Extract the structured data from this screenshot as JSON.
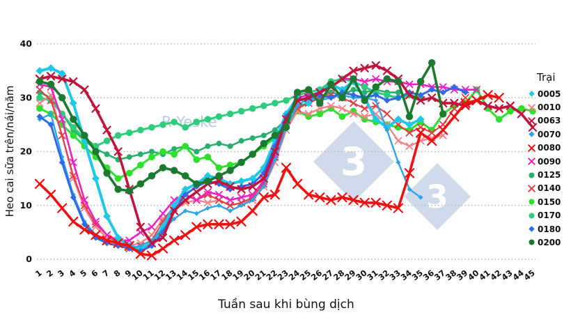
{
  "watermark": {
    "text": "R Yeske",
    "logo_digit": "3"
  },
  "chart_data": {
    "type": "line",
    "title": "",
    "xlabel": "Tuần sau khi bùng dịch",
    "ylabel": "Heo cai sữa trên/nái/năm",
    "legend_title": "Trại",
    "legend_position": "right",
    "grid": "horizontal-dotted",
    "grid_color": "#b8b8b8",
    "ylim": [
      0,
      40
    ],
    "yticks": [
      0,
      10,
      20,
      30,
      40
    ],
    "x_ticks": [
      1,
      2,
      3,
      4,
      5,
      6,
      7,
      8,
      9,
      10,
      11,
      12,
      13,
      14,
      15,
      16,
      17,
      18,
      19,
      20,
      21,
      22,
      23,
      24,
      25,
      26,
      27,
      28,
      29,
      30,
      31,
      32,
      33,
      34,
      35,
      36,
      37,
      38,
      39,
      40,
      41,
      42,
      43,
      44,
      45
    ],
    "draw_order": [
      "0125",
      "0170",
      "0150",
      "0010",
      "0140",
      "0090",
      "0005",
      "0070",
      "0180",
      "0063",
      "0200",
      "0080"
    ],
    "series": [
      {
        "name": "0005",
        "color": "#1ec8e6",
        "marker": "diamond",
        "width": 4,
        "msize": 5.5,
        "values": [
          35,
          35.5,
          34.5,
          29,
          22,
          15,
          8,
          4,
          2.5,
          2,
          3,
          6,
          10,
          13,
          14,
          15.5,
          15,
          14,
          14.5,
          15,
          17,
          22,
          27,
          30,
          29,
          31,
          32.5,
          31.5,
          33,
          30,
          26,
          24.5,
          26,
          25,
          26,
          null,
          null,
          null,
          null,
          null,
          null,
          null,
          null,
          null,
          null
        ]
      },
      {
        "name": "0010",
        "color": "#f08488",
        "marker": "x",
        "width": 2.4,
        "msize": 4.5,
        "values": [
          29,
          30.5,
          23,
          15,
          9.5,
          6,
          4,
          3,
          2.5,
          3,
          4.5,
          7.5,
          9.5,
          10.5,
          11,
          10.5,
          11,
          10,
          10.5,
          11,
          13.5,
          18,
          24,
          27.5,
          27,
          28,
          28.5,
          28,
          27,
          26.5,
          27,
          25,
          22,
          21,
          22,
          22.5,
          23,
          null,
          null,
          null,
          null,
          null,
          null,
          null,
          null
        ]
      },
      {
        "name": "0063",
        "color": "#c0143c",
        "marker": "x",
        "width": 3.6,
        "msize": 5,
        "values": [
          33.5,
          34,
          33.5,
          33,
          31.5,
          28,
          24,
          20,
          13,
          6,
          3,
          4,
          9,
          11,
          12.5,
          14,
          14.5,
          13.5,
          13,
          13.5,
          15,
          20,
          26,
          29.5,
          30,
          31,
          32,
          33.5,
          35,
          35.5,
          36,
          35,
          33.5,
          30.5,
          29.5,
          30,
          29,
          29,
          28.5,
          29.5,
          28.5,
          28,
          28.5,
          27,
          24.5
        ]
      },
      {
        "name": "0070",
        "color": "#2fa3e8",
        "marker": "diamond",
        "width": 2.4,
        "msize": 3.5,
        "values": [
          26,
          27,
          19,
          12,
          7,
          4.5,
          3,
          2.5,
          2,
          2.5,
          3.5,
          5.5,
          7.5,
          9,
          8.5,
          9.5,
          10,
          9,
          10,
          11,
          13.5,
          18.5,
          24.5,
          28.5,
          30,
          29.5,
          30,
          30.5,
          30,
          30,
          29.5,
          24,
          18,
          13,
          11.5,
          null,
          null,
          null,
          null,
          null,
          null,
          null,
          null,
          null,
          null
        ]
      },
      {
        "name": "0080",
        "color": "#ee1111",
        "marker": "x",
        "width": 3.6,
        "msize": 6,
        "values": [
          14,
          12,
          9.5,
          7,
          5.5,
          4.5,
          3.5,
          3,
          2.5,
          1,
          0.7,
          2,
          3.5,
          4.5,
          6,
          6.5,
          6.5,
          6.5,
          7,
          9,
          11.5,
          12,
          17,
          14,
          12,
          11.5,
          11,
          11.5,
          11,
          10.5,
          10.5,
          10,
          9.5,
          16,
          23.5,
          22,
          24,
          26.5,
          29,
          29.5,
          30.5,
          30,
          null,
          null,
          null
        ]
      },
      {
        "name": "0090",
        "color": "#e922c4",
        "marker": "x",
        "width": 2.6,
        "msize": 4.5,
        "values": [
          32.5,
          32,
          26,
          18,
          11,
          7,
          4.5,
          3.5,
          3.5,
          5,
          6,
          8.5,
          11,
          12,
          11,
          12.5,
          12,
          11,
          11.5,
          12,
          14.5,
          19.5,
          26,
          30,
          30.5,
          31,
          32,
          33.5,
          33.5,
          33,
          33.5,
          33,
          33,
          32.5,
          32.5,
          32,
          32,
          31.5,
          31.5,
          31.5,
          null,
          null,
          null,
          null,
          null
        ]
      },
      {
        "name": "0125",
        "color": "#2aae6e",
        "marker": "circle",
        "width": 2.6,
        "msize": 4,
        "values": [
          31,
          30,
          27,
          24,
          22,
          20.5,
          19.5,
          18.5,
          19,
          19.5,
          20,
          19.5,
          20.5,
          21,
          20,
          21,
          21.5,
          21,
          22,
          22.5,
          23,
          24,
          26,
          28.5,
          29,
          30,
          31,
          30.5,
          31.5,
          31,
          31.5,
          31,
          31,
          null,
          null,
          null,
          null,
          null,
          null,
          null,
          null,
          null,
          null,
          null,
          null
        ]
      },
      {
        "name": "0140",
        "color": "#e03c44",
        "marker": "x",
        "width": 2,
        "msize": 4.5,
        "values": [
          31.5,
          29.5,
          23,
          15.5,
          10,
          6.5,
          4.5,
          3,
          2,
          2.5,
          3.5,
          7,
          10,
          12,
          11,
          12,
          11,
          10,
          10.5,
          11.5,
          14,
          19,
          25,
          28,
          29,
          30,
          30.5,
          30,
          29,
          28,
          28.5,
          27,
          25,
          23.5,
          24.5,
          23.5,
          25,
          28,
          30,
          null,
          null,
          null,
          null,
          null,
          null
        ]
      },
      {
        "name": "0150",
        "color": "#2ee02e",
        "marker": "circle",
        "width": 3,
        "msize": 4.8,
        "values": [
          28,
          27,
          25,
          23,
          21,
          19,
          17,
          15,
          16,
          17.5,
          19,
          20,
          19.5,
          21,
          18.5,
          19,
          17,
          17.5,
          18,
          19.5,
          21,
          22.5,
          25,
          27.5,
          26.5,
          27,
          28,
          26.5,
          27.5,
          26,
          25.5,
          25,
          24.5,
          24,
          25.5,
          24,
          27,
          28.5,
          29,
          31.5,
          28,
          26,
          27.5,
          28,
          27.5
        ]
      },
      {
        "name": "0170",
        "color": "#2fcc7e",
        "marker": "circle",
        "width": 3,
        "msize": 4.8,
        "values": [
          30,
          29.5,
          27,
          24.5,
          22.5,
          21,
          22,
          23,
          23.5,
          24,
          24.5,
          25,
          25.5,
          24.5,
          25.5,
          26,
          26.5,
          27,
          27.5,
          28,
          28.5,
          29,
          29.5,
          30.5,
          31,
          31.5,
          33,
          33.5,
          33,
          32,
          31,
          30.5,
          30,
          30.5,
          30,
          null,
          null,
          null,
          null,
          null,
          null,
          null,
          null,
          null,
          null
        ]
      },
      {
        "name": "0180",
        "color": "#2e6be8",
        "marker": "diamond",
        "width": 3,
        "msize": 4.5,
        "values": [
          26.5,
          25,
          18,
          11.5,
          6.5,
          4,
          3,
          2.5,
          2,
          1.5,
          2.5,
          5,
          9,
          12,
          13.5,
          14.5,
          14,
          13,
          13.5,
          14,
          16,
          21,
          26.5,
          29.5,
          30,
          30.5,
          30,
          31,
          30.5,
          30,
          30.5,
          29.5,
          30,
          31,
          30.5,
          31.5,
          31,
          32,
          31,
          null,
          null,
          null,
          null,
          null,
          null
        ]
      },
      {
        "name": "0200",
        "color": "#1c7a30",
        "marker": "circle",
        "width": 3.6,
        "msize": 5.2,
        "values": [
          33,
          32.5,
          30,
          26,
          23,
          20,
          16,
          13,
          12.7,
          14,
          15.5,
          17,
          16.5,
          15.5,
          14,
          14.5,
          15.5,
          16.5,
          18,
          19.5,
          21.5,
          23,
          24.5,
          31,
          31.5,
          29,
          32.5,
          30,
          33.5,
          29.5,
          32,
          33.5,
          33,
          26.5,
          33,
          36.5,
          27,
          null,
          null,
          null,
          null,
          null,
          null,
          null,
          null
        ]
      }
    ]
  }
}
